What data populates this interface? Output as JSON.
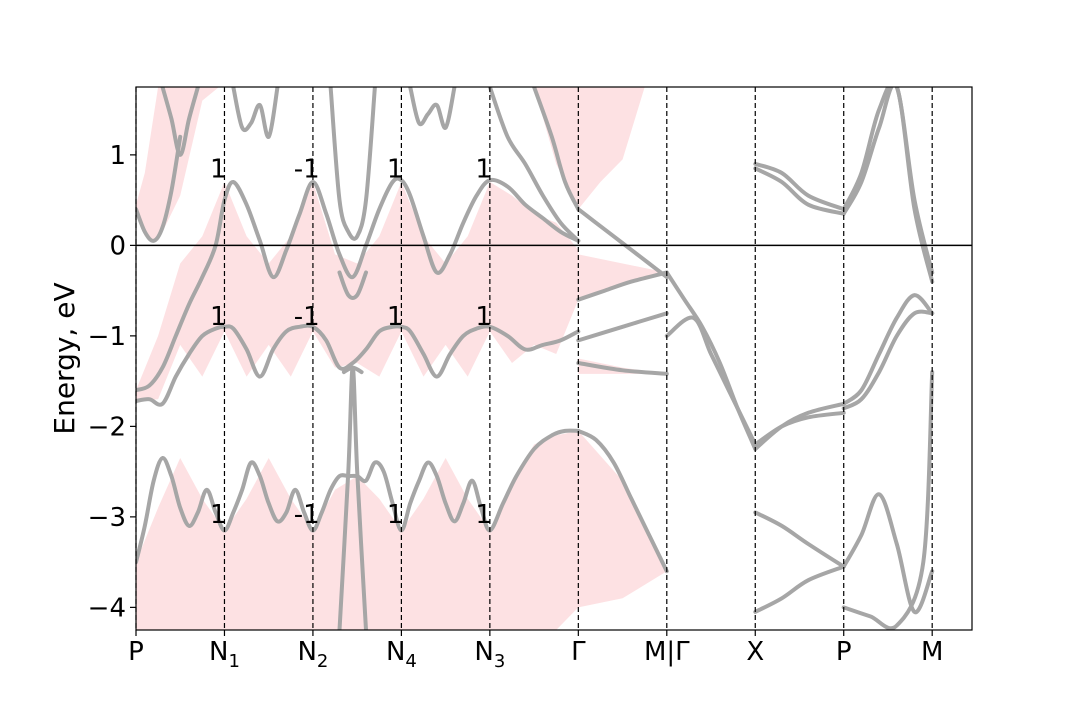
{
  "chart_data": {
    "type": "line",
    "title": "",
    "ylabel": "Energy, eV",
    "xlabel": "",
    "ylim": [
      -4.25,
      1.75
    ],
    "y_ticks": [
      {
        "value": -4,
        "label": "−4"
      },
      {
        "value": -3,
        "label": "−3"
      },
      {
        "value": -2,
        "label": "−2"
      },
      {
        "value": -1,
        "label": "−1"
      },
      {
        "value": 0,
        "label": "0"
      },
      {
        "value": 1,
        "label": "1"
      }
    ],
    "fermi_level": 0,
    "kpath": [
      {
        "pos": 0,
        "label": "P",
        "sub": ""
      },
      {
        "pos": 1,
        "label": "N",
        "sub": "1"
      },
      {
        "pos": 2,
        "label": "N",
        "sub": "2"
      },
      {
        "pos": 3,
        "label": "N",
        "sub": "4"
      },
      {
        "pos": 4,
        "label": "N",
        "sub": "3"
      },
      {
        "pos": 5,
        "label": "Γ",
        "sub": ""
      },
      {
        "pos": 6,
        "label": "M|Γ",
        "sub": ""
      },
      {
        "pos": 7,
        "label": "X",
        "sub": ""
      },
      {
        "pos": 8,
        "label": "P",
        "sub": ""
      },
      {
        "pos": 9,
        "label": "M",
        "sub": ""
      }
    ],
    "band_annotations": [
      {
        "x": 0.93,
        "y": 0.85,
        "text": "1"
      },
      {
        "x": 1.93,
        "y": 0.85,
        "text": "-1"
      },
      {
        "x": 2.93,
        "y": 0.85,
        "text": "1"
      },
      {
        "x": 3.93,
        "y": 0.85,
        "text": "1"
      },
      {
        "x": 0.93,
        "y": -0.78,
        "text": "1"
      },
      {
        "x": 1.93,
        "y": -0.78,
        "text": "-1"
      },
      {
        "x": 2.93,
        "y": -0.78,
        "text": "1"
      },
      {
        "x": 3.93,
        "y": -0.78,
        "text": "1"
      },
      {
        "x": 0.93,
        "y": -2.97,
        "text": "1"
      },
      {
        "x": 1.93,
        "y": -2.97,
        "text": "-1"
      },
      {
        "x": 2.93,
        "y": -2.97,
        "text": "1"
      },
      {
        "x": 3.93,
        "y": -2.97,
        "text": "1"
      }
    ],
    "shaded_regions": [
      {
        "name": "gap-top",
        "x": [
          0,
          0.1,
          0.25,
          0.5,
          0.75,
          1
        ],
        "y_low": [
          0.4,
          0.1,
          0.05,
          0.55,
          1.6,
          1.8
        ],
        "y_high": [
          0.45,
          0.8,
          1.75,
          1.75,
          1.75,
          1.75
        ]
      },
      {
        "name": "valence-upper",
        "x": [
          0,
          0.25,
          0.5,
          0.75,
          1,
          1.25,
          1.5,
          1.75,
          2,
          2.25,
          2.5,
          2.75,
          3,
          3.25,
          3.5,
          3.75,
          4,
          4.25,
          4.5,
          4.75,
          5
        ],
        "y_low": [
          -1.72,
          -1.7,
          -1.1,
          -1.45,
          -0.95,
          -1.45,
          -1.1,
          -1.45,
          -0.95,
          -1.35,
          -1.3,
          -1.45,
          -0.95,
          -1.45,
          -1.1,
          -1.45,
          -0.95,
          -1.3,
          -1.1,
          -1.2,
          -0.6
        ],
        "y_high": [
          -1.6,
          -1.0,
          -0.2,
          0.1,
          0.7,
          0.1,
          -0.2,
          0.1,
          0.7,
          -0.1,
          -0.2,
          0.1,
          0.7,
          0.1,
          -0.2,
          0.1,
          0.7,
          0.55,
          0.35,
          0.25,
          -0.05
        ]
      },
      {
        "name": "valence-lower",
        "x": [
          0,
          0.25,
          0.5,
          0.75,
          1,
          1.25,
          1.5,
          1.75,
          2,
          2.25,
          2.5,
          2.75,
          3,
          3.25,
          3.5,
          3.75,
          4,
          4.25,
          4.5,
          4.75,
          5,
          5.5,
          6
        ],
        "y_low": [
          -4.25,
          -4.25,
          -4.25,
          -4.25,
          -4.25,
          -4.25,
          -4.25,
          -4.25,
          -4.25,
          -4.25,
          -4.25,
          -4.25,
          -4.25,
          -4.25,
          -4.25,
          -4.25,
          -4.25,
          -4.25,
          -4.25,
          -4.25,
          -4.0,
          -3.9,
          -3.6
        ],
        "y_high": [
          -3.5,
          -2.9,
          -2.35,
          -2.8,
          -3.15,
          -2.8,
          -2.35,
          -2.8,
          -3.15,
          -2.7,
          -2.55,
          -2.8,
          -3.15,
          -2.8,
          -2.35,
          -2.8,
          -3.15,
          -2.6,
          -2.2,
          -2.1,
          -2.05,
          -2.6,
          -3.6
        ]
      },
      {
        "name": "gamma-top",
        "x": [
          4.5,
          4.75,
          5,
          5.25,
          5.5,
          5.75
        ],
        "y_low": [
          1.75,
          0.9,
          0.4,
          0.7,
          0.95,
          1.75
        ],
        "y_high": [
          1.75,
          1.75,
          1.75,
          1.75,
          1.75,
          1.75
        ]
      },
      {
        "name": "gamma-wedge",
        "x": [
          5,
          5.5,
          6
        ],
        "y_low": [
          -0.6,
          -0.45,
          -0.3
        ],
        "y_high": [
          -0.1,
          -0.2,
          -0.3
        ]
      },
      {
        "name": "gamma-wedge2",
        "x": [
          5,
          5.5,
          6
        ],
        "y_low": [
          -1.42,
          -1.42,
          -1.42
        ],
        "y_high": [
          -1.25,
          -1.35,
          -1.42
        ]
      }
    ],
    "series": [
      {
        "x": [
          0,
          0.1,
          0.2,
          0.3,
          0.4,
          0.5,
          0.6,
          0.7,
          0.8,
          0.9,
          1,
          1.1,
          1.2,
          1.3,
          1.4,
          1.5,
          1.6,
          1.7,
          1.8,
          1.9,
          2,
          2.1,
          2.2,
          2.3,
          2.4,
          2.5,
          2.6,
          2.7,
          2.8,
          2.9,
          3,
          3.1,
          3.2,
          3.3,
          3.4,
          3.5,
          3.6,
          3.7,
          3.8,
          3.9,
          4,
          4.15,
          4.3,
          4.5,
          4.7,
          4.85,
          5
        ],
        "y": [
          -3.5,
          -3.1,
          -2.6,
          -2.35,
          -2.55,
          -2.9,
          -3.1,
          -2.95,
          -2.7,
          -2.95,
          -3.15,
          -2.95,
          -2.7,
          -2.4,
          -2.55,
          -2.85,
          -3.05,
          -2.95,
          -2.7,
          -2.95,
          -3.15,
          -2.95,
          -2.7,
          -2.55,
          -2.55,
          -2.55,
          -2.6,
          -2.4,
          -2.5,
          -2.85,
          -3.15,
          -2.85,
          -2.6,
          -2.4,
          -2.55,
          -2.85,
          -3.05,
          -2.85,
          -2.6,
          -2.9,
          -3.15,
          -2.85,
          -2.55,
          -2.25,
          -2.1,
          -2.05,
          -2.05
        ]
      },
      {
        "x": [
          5,
          5.2,
          5.4,
          5.6,
          5.8,
          6
        ],
        "y": [
          -2.05,
          -2.15,
          -2.4,
          -2.8,
          -3.2,
          -3.6
        ]
      },
      {
        "x": [
          0,
          0.15,
          0.3,
          0.45,
          0.6,
          0.75,
          0.9,
          1,
          1.1,
          1.25,
          1.4,
          1.55,
          1.7,
          1.85,
          2,
          2.15,
          2.3,
          2.45,
          2.6,
          2.75,
          2.9,
          3,
          3.1,
          3.25,
          3.4,
          3.55,
          3.7,
          3.85,
          4,
          4.2,
          4.4,
          4.6,
          4.8,
          5
        ],
        "y": [
          -1.6,
          -1.55,
          -1.35,
          -1.0,
          -0.65,
          -0.35,
          -0.0,
          0.5,
          0.7,
          0.45,
          0.05,
          -0.35,
          -0.05,
          0.35,
          0.7,
          0.35,
          -0.1,
          -0.35,
          0.0,
          0.4,
          0.7,
          0.72,
          0.55,
          0.1,
          -0.3,
          -0.1,
          0.25,
          0.55,
          0.72,
          0.65,
          0.45,
          0.3,
          0.15,
          0.05
        ]
      },
      {
        "x": [
          0,
          0.15,
          0.3,
          0.45,
          0.6,
          0.75,
          0.9,
          1,
          1.1,
          1.25,
          1.4,
          1.55,
          1.7,
          1.85,
          2,
          2.15,
          2.3,
          2.45,
          2.6,
          2.75,
          2.9,
          3,
          3.1,
          3.25,
          3.4,
          3.55,
          3.7,
          3.85,
          4,
          4.2,
          4.4,
          4.6,
          4.8,
          5
        ],
        "y": [
          -1.72,
          -1.7,
          -1.75,
          -1.45,
          -1.2,
          -1.0,
          -0.92,
          -0.9,
          -0.92,
          -1.15,
          -1.45,
          -1.15,
          -0.95,
          -0.9,
          -0.9,
          -1.05,
          -1.35,
          -1.3,
          -1.15,
          -0.95,
          -0.9,
          -0.9,
          -0.95,
          -1.2,
          -1.45,
          -1.2,
          -1.0,
          -0.92,
          -0.9,
          -1.0,
          -1.15,
          -1.1,
          -1.05,
          -0.95
        ]
      },
      {
        "x": [
          0,
          0.1,
          0.2,
          0.3,
          0.4,
          0.5
        ],
        "y": [
          0.4,
          0.15,
          0.05,
          0.2,
          0.6,
          1.2
        ]
      },
      {
        "x": [
          0.3,
          0.4,
          0.5,
          0.6,
          0.7
        ],
        "y": [
          1.75,
          1.4,
          1.0,
          1.4,
          1.75
        ]
      },
      {
        "x": [
          1.1,
          1.2,
          1.3,
          1.4,
          1.5,
          1.6
        ],
        "y": [
          1.75,
          1.3,
          1.35,
          1.55,
          1.2,
          1.75
        ]
      },
      {
        "x": [
          2.2,
          2.3,
          2.4,
          2.5,
          2.6,
          2.7
        ],
        "y": [
          1.75,
          0.5,
          0.15,
          0.1,
          0.5,
          1.75
        ]
      },
      {
        "x": [
          2.3,
          2.4,
          2.5,
          2.6
        ],
        "y": [
          -0.3,
          -0.55,
          -0.55,
          -0.3
        ]
      },
      {
        "x": [
          2.35,
          2.45,
          2.55
        ],
        "y": [
          -1.4,
          -1.35,
          -1.4
        ]
      },
      {
        "x": [
          2.3,
          2.4,
          2.45,
          2.5,
          2.6
        ],
        "y": [
          -4.25,
          -2.5,
          -1.35,
          -2.5,
          -4.25
        ]
      },
      {
        "x": [
          3.1,
          3.2,
          3.3,
          3.4,
          3.5,
          3.6
        ],
        "y": [
          1.75,
          1.35,
          1.45,
          1.55,
          1.3,
          1.75
        ]
      },
      {
        "x": [
          4.0,
          4.2,
          4.4,
          4.6,
          4.8,
          5
        ],
        "y": [
          1.75,
          1.2,
          0.9,
          0.55,
          0.25,
          0.05
        ]
      },
      {
        "x": [
          4.5,
          4.7,
          4.85,
          5
        ],
        "y": [
          1.75,
          1.2,
          0.7,
          0.4
        ]
      },
      {
        "x": [
          5,
          5.2,
          5.4,
          5.6,
          5.8,
          6
        ],
        "y": [
          0.4,
          0.25,
          0.1,
          -0.05,
          -0.2,
          -0.35
        ]
      },
      {
        "x": [
          5,
          5.3,
          5.6,
          6
        ],
        "y": [
          -0.6,
          -0.5,
          -0.4,
          -0.3
        ]
      },
      {
        "x": [
          5,
          5.5,
          6
        ],
        "y": [
          -1.3,
          -1.38,
          -1.42
        ]
      },
      {
        "x": [
          5,
          5.5,
          6
        ],
        "y": [
          -1.05,
          -0.9,
          -0.75
        ]
      },
      {
        "x": [
          6,
          6.2,
          6.4,
          6.6,
          6.8,
          7
        ],
        "y": [
          -0.3,
          -0.6,
          -0.9,
          -1.3,
          -1.8,
          -2.25
        ]
      },
      {
        "x": [
          6,
          6.3,
          6.5,
          6.7,
          7
        ],
        "y": [
          -1.0,
          -0.8,
          -1.2,
          -1.6,
          -2.2
        ]
      },
      {
        "x": [
          7,
          7.3,
          7.6,
          8
        ],
        "y": [
          -2.25,
          -2.0,
          -1.85,
          -1.75
        ]
      },
      {
        "x": [
          7,
          7.3,
          7.6,
          8
        ],
        "y": [
          -2.2,
          -2.0,
          -1.9,
          -1.85
        ]
      },
      {
        "x": [
          7,
          7.3,
          7.6,
          8
        ],
        "y": [
          0.9,
          0.8,
          0.55,
          0.4
        ]
      },
      {
        "x": [
          7,
          7.3,
          7.6,
          8
        ],
        "y": [
          0.85,
          0.7,
          0.45,
          0.35
        ]
      },
      {
        "x": [
          7,
          7.3,
          7.6,
          8
        ],
        "y": [
          -4.05,
          -3.9,
          -3.7,
          -3.55
        ]
      },
      {
        "x": [
          7,
          7.3,
          7.6,
          8
        ],
        "y": [
          -2.95,
          -3.1,
          -3.3,
          -3.55
        ]
      },
      {
        "x": [
          8,
          8.2,
          8.4,
          8.6,
          8.8,
          9
        ],
        "y": [
          -1.75,
          -1.6,
          -1.2,
          -0.8,
          -0.55,
          -0.75
        ]
      },
      {
        "x": [
          8,
          8.2,
          8.4,
          8.6,
          8.8,
          9
        ],
        "y": [
          -1.8,
          -1.7,
          -1.4,
          -1.0,
          -0.75,
          -0.75
        ]
      },
      {
        "x": [
          8,
          8.2,
          8.4,
          8.6,
          8.8,
          9
        ],
        "y": [
          0.4,
          0.8,
          1.5,
          1.75,
          0.5,
          -0.3
        ]
      },
      {
        "x": [
          8,
          8.2,
          8.4,
          8.6,
          8.8,
          9
        ],
        "y": [
          0.35,
          0.7,
          1.3,
          1.75,
          0.4,
          -0.4
        ]
      },
      {
        "x": [
          8,
          8.2,
          8.4,
          8.6,
          8.8,
          9
        ],
        "y": [
          -3.55,
          -3.2,
          -2.75,
          -3.3,
          -4.05,
          -3.6
        ]
      },
      {
        "x": [
          8,
          8.3,
          8.6,
          8.9,
          9
        ],
        "y": [
          -4.0,
          -4.1,
          -4.2,
          -3.5,
          -1.4
        ]
      }
    ]
  }
}
